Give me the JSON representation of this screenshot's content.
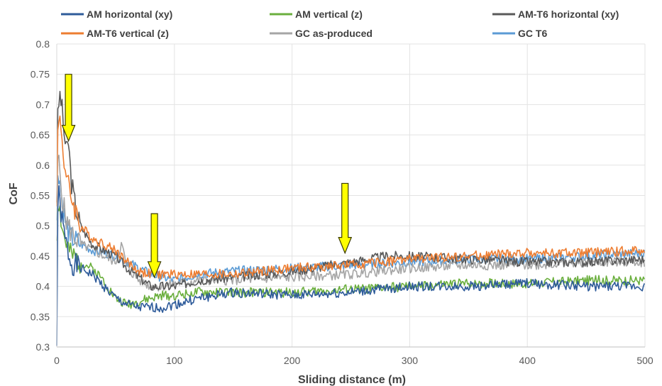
{
  "chart_data": {
    "type": "line",
    "title": "",
    "xlabel": "Sliding distance (m)",
    "ylabel": "CoF",
    "xlim": [
      0,
      500
    ],
    "ylim": [
      0.3,
      0.8
    ],
    "x_ticks": [
      "0",
      "100",
      "200",
      "300",
      "400",
      "500"
    ],
    "y_ticks": [
      "0.3",
      "0.35",
      "0.4",
      "0.45",
      "0.5",
      "0.55",
      "0.6",
      "0.65",
      "0.7",
      "0.75",
      "0.8"
    ],
    "grid": true,
    "legend_position": "top",
    "series": [
      {
        "name": "AM horizontal (xy)",
        "color": "#2E5B9A",
        "x": [
          0,
          1,
          3,
          5,
          8,
          12,
          20,
          30,
          40,
          50,
          60,
          70,
          80,
          90,
          100,
          120,
          150,
          200,
          250,
          300,
          350,
          400,
          450,
          500
        ],
        "y": [
          0.3,
          0.56,
          0.53,
          0.5,
          0.47,
          0.44,
          0.43,
          0.42,
          0.4,
          0.38,
          0.37,
          0.365,
          0.365,
          0.365,
          0.37,
          0.38,
          0.39,
          0.385,
          0.39,
          0.4,
          0.4,
          0.405,
          0.4,
          0.4
        ]
      },
      {
        "name": "AM vertical (z)",
        "color": "#6AAF3D",
        "x": [
          0,
          1,
          3,
          5,
          8,
          12,
          20,
          30,
          40,
          50,
          60,
          70,
          80,
          90,
          100,
          120,
          150,
          200,
          250,
          300,
          350,
          400,
          450,
          500
        ],
        "y": [
          0.48,
          0.55,
          0.52,
          0.49,
          0.47,
          0.45,
          0.44,
          0.43,
          0.41,
          0.38,
          0.37,
          0.375,
          0.38,
          0.385,
          0.385,
          0.39,
          0.39,
          0.39,
          0.395,
          0.4,
          0.405,
          0.405,
          0.41,
          0.41
        ]
      },
      {
        "name": "AM-T6 horizontal (xy)",
        "color": "#595959",
        "x": [
          0,
          1,
          3,
          5,
          8,
          10,
          12,
          15,
          20,
          30,
          40,
          50,
          60,
          70,
          80,
          90,
          100,
          120,
          150,
          200,
          250,
          280,
          300,
          350,
          400,
          450,
          500
        ],
        "y": [
          0.55,
          0.69,
          0.72,
          0.68,
          0.62,
          0.64,
          0.58,
          0.54,
          0.5,
          0.47,
          0.46,
          0.45,
          0.43,
          0.415,
          0.4,
          0.4,
          0.4,
          0.41,
          0.415,
          0.425,
          0.44,
          0.45,
          0.45,
          0.445,
          0.44,
          0.44,
          0.445
        ]
      },
      {
        "name": "AM-T6 vertical (z)",
        "color": "#ED7D31",
        "x": [
          0,
          1,
          3,
          5,
          8,
          12,
          20,
          30,
          40,
          50,
          60,
          70,
          80,
          90,
          100,
          120,
          150,
          200,
          250,
          300,
          350,
          400,
          450,
          500
        ],
        "y": [
          0.55,
          0.66,
          0.68,
          0.63,
          0.58,
          0.55,
          0.5,
          0.48,
          0.47,
          0.46,
          0.44,
          0.425,
          0.42,
          0.42,
          0.42,
          0.42,
          0.42,
          0.43,
          0.435,
          0.445,
          0.45,
          0.455,
          0.455,
          0.46
        ]
      },
      {
        "name": "GC as-produced",
        "color": "#A5A5A5",
        "x": [
          0,
          1,
          3,
          5,
          8,
          12,
          20,
          30,
          40,
          50,
          55,
          60,
          70,
          80,
          90,
          100,
          120,
          150,
          200,
          250,
          300,
          350,
          400,
          450,
          500
        ],
        "y": [
          0.52,
          0.62,
          0.58,
          0.54,
          0.51,
          0.49,
          0.47,
          0.46,
          0.45,
          0.44,
          0.47,
          0.43,
          0.41,
          0.4,
          0.4,
          0.405,
          0.41,
          0.41,
          0.415,
          0.42,
          0.43,
          0.435,
          0.435,
          0.44,
          0.44
        ]
      },
      {
        "name": "GC T6",
        "color": "#5B9BD5",
        "x": [
          0,
          1,
          3,
          5,
          8,
          12,
          20,
          30,
          40,
          50,
          60,
          70,
          80,
          90,
          100,
          120,
          150,
          200,
          250,
          300,
          350,
          400,
          450,
          500
        ],
        "y": [
          0.5,
          0.6,
          0.57,
          0.53,
          0.5,
          0.48,
          0.47,
          0.46,
          0.455,
          0.45,
          0.44,
          0.43,
          0.42,
          0.415,
          0.41,
          0.42,
          0.425,
          0.43,
          0.435,
          0.44,
          0.445,
          0.445,
          0.45,
          0.455
        ]
      }
    ],
    "annotations": [
      {
        "type": "arrow",
        "color": "#FFFF00",
        "x": 10,
        "y_top": 0.75,
        "y_tip": 0.64
      },
      {
        "type": "arrow",
        "color": "#FFFF00",
        "x": 83,
        "y_top": 0.52,
        "y_tip": 0.415
      },
      {
        "type": "arrow",
        "color": "#FFFF00",
        "x": 245,
        "y_top": 0.57,
        "y_tip": 0.455
      }
    ]
  }
}
